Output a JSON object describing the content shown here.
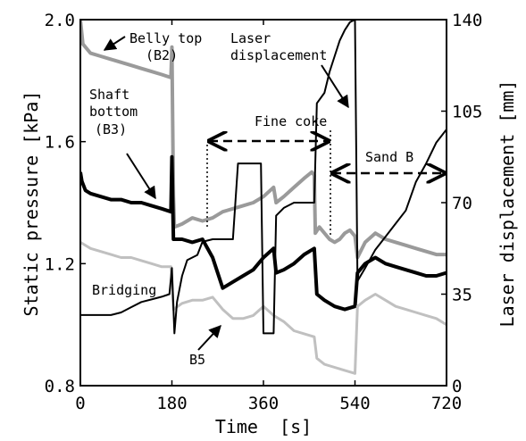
{
  "chart_data": {
    "type": "line",
    "xlabel": "Time  [s]",
    "ylabel_left": "Static pressure  [kPa]",
    "ylabel_right": "Laser displacement [mm]",
    "xlim": [
      0,
      720
    ],
    "ylim_left": [
      0.8,
      2.0
    ],
    "ylim_right": [
      0,
      140
    ],
    "xticks": [
      0,
      180,
      360,
      540,
      720
    ],
    "xtick_labels": [
      "0",
      "180",
      "360",
      "540",
      "720"
    ],
    "yticks_left": [
      0.8,
      1.2,
      1.6,
      2.0
    ],
    "ytick_labels_left": [
      "0.8",
      "1.2",
      "1.6",
      "2.0"
    ],
    "yticks_right": [
      0,
      35,
      70,
      105,
      140
    ],
    "ytick_labels_right": [
      "0",
      "35",
      "70",
      "105",
      "140"
    ],
    "grid": false,
    "annotations": [
      {
        "text": "Belly top",
        "id": "belly_top"
      },
      {
        "text": "(B2)",
        "id": "b2"
      },
      {
        "text": "Shaft",
        "id": "shaft"
      },
      {
        "text": "bottom",
        "id": "bottom"
      },
      {
        "text": "(B3)",
        "id": "b3"
      },
      {
        "text": "Bridging",
        "id": "bridging"
      },
      {
        "text": "B5",
        "id": "b5"
      },
      {
        "text": "Laser",
        "id": "laser"
      },
      {
        "text": "displacement",
        "id": "displacement"
      },
      {
        "text": "Fine coke",
        "id": "fine_coke"
      },
      {
        "text": "Sand B",
        "id": "sand_b"
      }
    ],
    "series": [
      {
        "name": "Belly top (B2)",
        "axis": "left",
        "color": "#9a9a9a",
        "width": 4,
        "points": [
          [
            0,
            2.0
          ],
          [
            5,
            1.92
          ],
          [
            20,
            1.89
          ],
          [
            40,
            1.88
          ],
          [
            60,
            1.87
          ],
          [
            80,
            1.86
          ],
          [
            100,
            1.85
          ],
          [
            120,
            1.84
          ],
          [
            140,
            1.83
          ],
          [
            160,
            1.82
          ],
          [
            178,
            1.81
          ],
          [
            180,
            1.91
          ],
          [
            183,
            1.42
          ],
          [
            185,
            1.32
          ],
          [
            200,
            1.33
          ],
          [
            220,
            1.35
          ],
          [
            240,
            1.34
          ],
          [
            260,
            1.35
          ],
          [
            280,
            1.37
          ],
          [
            300,
            1.38
          ],
          [
            320,
            1.39
          ],
          [
            340,
            1.4
          ],
          [
            360,
            1.42
          ],
          [
            380,
            1.45
          ],
          [
            385,
            1.4
          ],
          [
            400,
            1.42
          ],
          [
            420,
            1.45
          ],
          [
            440,
            1.48
          ],
          [
            455,
            1.5
          ],
          [
            460,
            1.49
          ],
          [
            462,
            1.3
          ],
          [
            470,
            1.32
          ],
          [
            490,
            1.28
          ],
          [
            500,
            1.27
          ],
          [
            510,
            1.28
          ],
          [
            520,
            1.3
          ],
          [
            530,
            1.31
          ],
          [
            540,
            1.29
          ],
          [
            545,
            1.22
          ],
          [
            560,
            1.27
          ],
          [
            580,
            1.3
          ],
          [
            600,
            1.28
          ],
          [
            620,
            1.27
          ],
          [
            640,
            1.26
          ],
          [
            660,
            1.25
          ],
          [
            680,
            1.24
          ],
          [
            700,
            1.23
          ],
          [
            720,
            1.23
          ]
        ]
      },
      {
        "name": "Shaft bottom (B3)",
        "axis": "left",
        "color": "#000000",
        "width": 4,
        "points": [
          [
            0,
            1.5
          ],
          [
            3,
            1.47
          ],
          [
            10,
            1.44
          ],
          [
            20,
            1.43
          ],
          [
            40,
            1.42
          ],
          [
            60,
            1.41
          ],
          [
            80,
            1.41
          ],
          [
            100,
            1.4
          ],
          [
            120,
            1.4
          ],
          [
            140,
            1.39
          ],
          [
            160,
            1.38
          ],
          [
            178,
            1.37
          ],
          [
            180,
            1.55
          ],
          [
            183,
            1.28
          ],
          [
            200,
            1.28
          ],
          [
            220,
            1.27
          ],
          [
            240,
            1.28
          ],
          [
            260,
            1.22
          ],
          [
            280,
            1.12
          ],
          [
            300,
            1.14
          ],
          [
            320,
            1.16
          ],
          [
            340,
            1.18
          ],
          [
            360,
            1.22
          ],
          [
            380,
            1.25
          ],
          [
            385,
            1.17
          ],
          [
            400,
            1.18
          ],
          [
            420,
            1.2
          ],
          [
            440,
            1.23
          ],
          [
            460,
            1.25
          ],
          [
            465,
            1.1
          ],
          [
            480,
            1.08
          ],
          [
            500,
            1.06
          ],
          [
            520,
            1.05
          ],
          [
            540,
            1.06
          ],
          [
            545,
            1.17
          ],
          [
            560,
            1.2
          ],
          [
            580,
            1.22
          ],
          [
            600,
            1.2
          ],
          [
            620,
            1.19
          ],
          [
            640,
            1.18
          ],
          [
            660,
            1.17
          ],
          [
            680,
            1.16
          ],
          [
            700,
            1.16
          ],
          [
            720,
            1.17
          ]
        ]
      },
      {
        "name": "B5",
        "axis": "left",
        "color": "#c0c0c0",
        "width": 3,
        "points": [
          [
            0,
            1.27
          ],
          [
            20,
            1.25
          ],
          [
            40,
            1.24
          ],
          [
            60,
            1.23
          ],
          [
            80,
            1.22
          ],
          [
            100,
            1.22
          ],
          [
            120,
            1.21
          ],
          [
            140,
            1.2
          ],
          [
            160,
            1.19
          ],
          [
            178,
            1.19
          ],
          [
            183,
            1.05
          ],
          [
            200,
            1.07
          ],
          [
            220,
            1.08
          ],
          [
            240,
            1.08
          ],
          [
            260,
            1.09
          ],
          [
            280,
            1.05
          ],
          [
            300,
            1.02
          ],
          [
            320,
            1.02
          ],
          [
            340,
            1.03
          ],
          [
            360,
            1.06
          ],
          [
            380,
            1.03
          ],
          [
            400,
            1.01
          ],
          [
            420,
            0.98
          ],
          [
            440,
            0.97
          ],
          [
            460,
            0.96
          ],
          [
            465,
            0.89
          ],
          [
            480,
            0.87
          ],
          [
            500,
            0.86
          ],
          [
            520,
            0.85
          ],
          [
            540,
            0.84
          ],
          [
            545,
            1.06
          ],
          [
            560,
            1.08
          ],
          [
            580,
            1.1
          ],
          [
            600,
            1.08
          ],
          [
            620,
            1.06
          ],
          [
            640,
            1.05
          ],
          [
            660,
            1.04
          ],
          [
            680,
            1.03
          ],
          [
            700,
            1.02
          ],
          [
            720,
            1.0
          ]
        ]
      },
      {
        "name": "Laser displacement",
        "axis": "right",
        "color": "#000000",
        "width": 2,
        "points": [
          [
            0,
            27
          ],
          [
            60,
            27
          ],
          [
            80,
            28
          ],
          [
            100,
            30
          ],
          [
            120,
            32
          ],
          [
            140,
            33
          ],
          [
            160,
            34
          ],
          [
            175,
            35
          ],
          [
            180,
            45
          ],
          [
            185,
            20
          ],
          [
            190,
            32
          ],
          [
            200,
            42
          ],
          [
            210,
            48
          ],
          [
            230,
            50
          ],
          [
            240,
            55
          ],
          [
            260,
            56
          ],
          [
            300,
            56
          ],
          [
            310,
            85
          ],
          [
            325,
            85
          ],
          [
            355,
            85
          ],
          [
            360,
            20
          ],
          [
            380,
            20
          ],
          [
            385,
            65
          ],
          [
            400,
            68
          ],
          [
            420,
            70
          ],
          [
            440,
            70
          ],
          [
            460,
            70
          ],
          [
            465,
            108
          ],
          [
            480,
            112
          ],
          [
            490,
            120
          ],
          [
            500,
            126
          ],
          [
            510,
            132
          ],
          [
            520,
            136
          ],
          [
            530,
            139
          ],
          [
            540,
            140
          ],
          [
            545,
            40
          ],
          [
            560,
            45
          ],
          [
            580,
            52
          ],
          [
            600,
            57
          ],
          [
            620,
            62
          ],
          [
            640,
            67
          ],
          [
            660,
            78
          ],
          [
            680,
            85
          ],
          [
            700,
            93
          ],
          [
            720,
            98
          ]
        ]
      }
    ]
  }
}
